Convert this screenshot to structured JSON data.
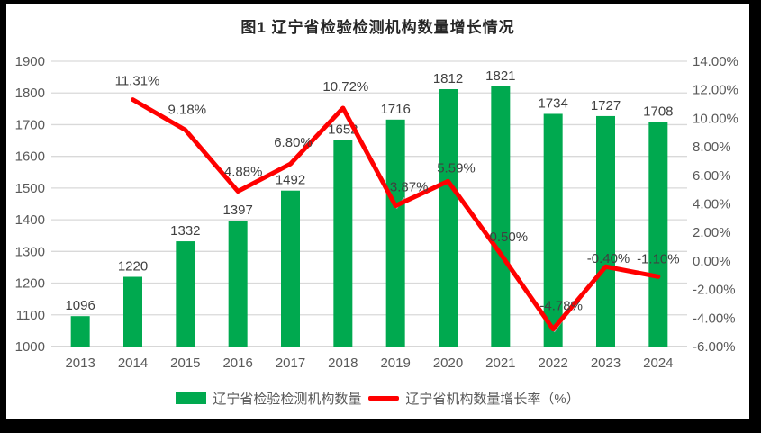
{
  "title": "图1 辽宁省检验检测机构数量增长情况",
  "chart_data": {
    "type": "bar+line",
    "title": "图1 辽宁省检验检测机构数量增长情况",
    "categories": [
      "2013",
      "2014",
      "2015",
      "2016",
      "2017",
      "2018",
      "2019",
      "2020",
      "2021",
      "2022",
      "2023",
      "2024"
    ],
    "series": [
      {
        "name": "辽宁省检验检测机构数量",
        "type": "bar",
        "axis": "left",
        "color": "#00A94F",
        "values": [
          1096,
          1220,
          1332,
          1397,
          1492,
          1652,
          1716,
          1812,
          1821,
          1734,
          1727,
          1708
        ]
      },
      {
        "name": "辽宁省机构数量增长率（%）",
        "type": "line",
        "axis": "right",
        "color": "#FF0000",
        "values": [
          null,
          11.31,
          9.18,
          4.88,
          6.8,
          10.72,
          3.87,
          5.59,
          0.5,
          -4.78,
          -0.4,
          -1.1
        ],
        "labels": [
          null,
          "11.31%",
          "9.18%",
          "4.88%",
          "6.80%",
          "10.72%",
          "3.87%",
          "5.59%",
          "0.50%",
          "-4.78%",
          "-0.40%",
          "-1.10%"
        ]
      }
    ],
    "left_axis": {
      "min": 1000,
      "max": 1900,
      "step": 100,
      "ticks": [
        "1900",
        "1800",
        "1700",
        "1600",
        "1500",
        "1400",
        "1300",
        "1200",
        "1100",
        "1000"
      ]
    },
    "right_axis": {
      "min": -6,
      "max": 14,
      "step": 2,
      "ticks": [
        "14.00%",
        "12.00%",
        "10.00%",
        "8.00%",
        "6.00%",
        "4.00%",
        "2.00%",
        "0.00%",
        "-2.00%",
        "-4.00%",
        "-6.00%"
      ]
    },
    "grid": true,
    "legend_position": "bottom"
  },
  "legend": {
    "bar_label": "辽宁省检验检测机构数量",
    "line_label": "辽宁省机构数量增长率（%）"
  },
  "colors": {
    "bar": "#00A94F",
    "line": "#FF0000",
    "grid": "#D9D9D9",
    "axis_line": "#BFBFBF",
    "axis_text": "#595959",
    "data_label": "#404040",
    "title_text": "#262626",
    "leader_line": "#A6A6A6",
    "frame": "#000000",
    "background": "#FFFFFF"
  }
}
